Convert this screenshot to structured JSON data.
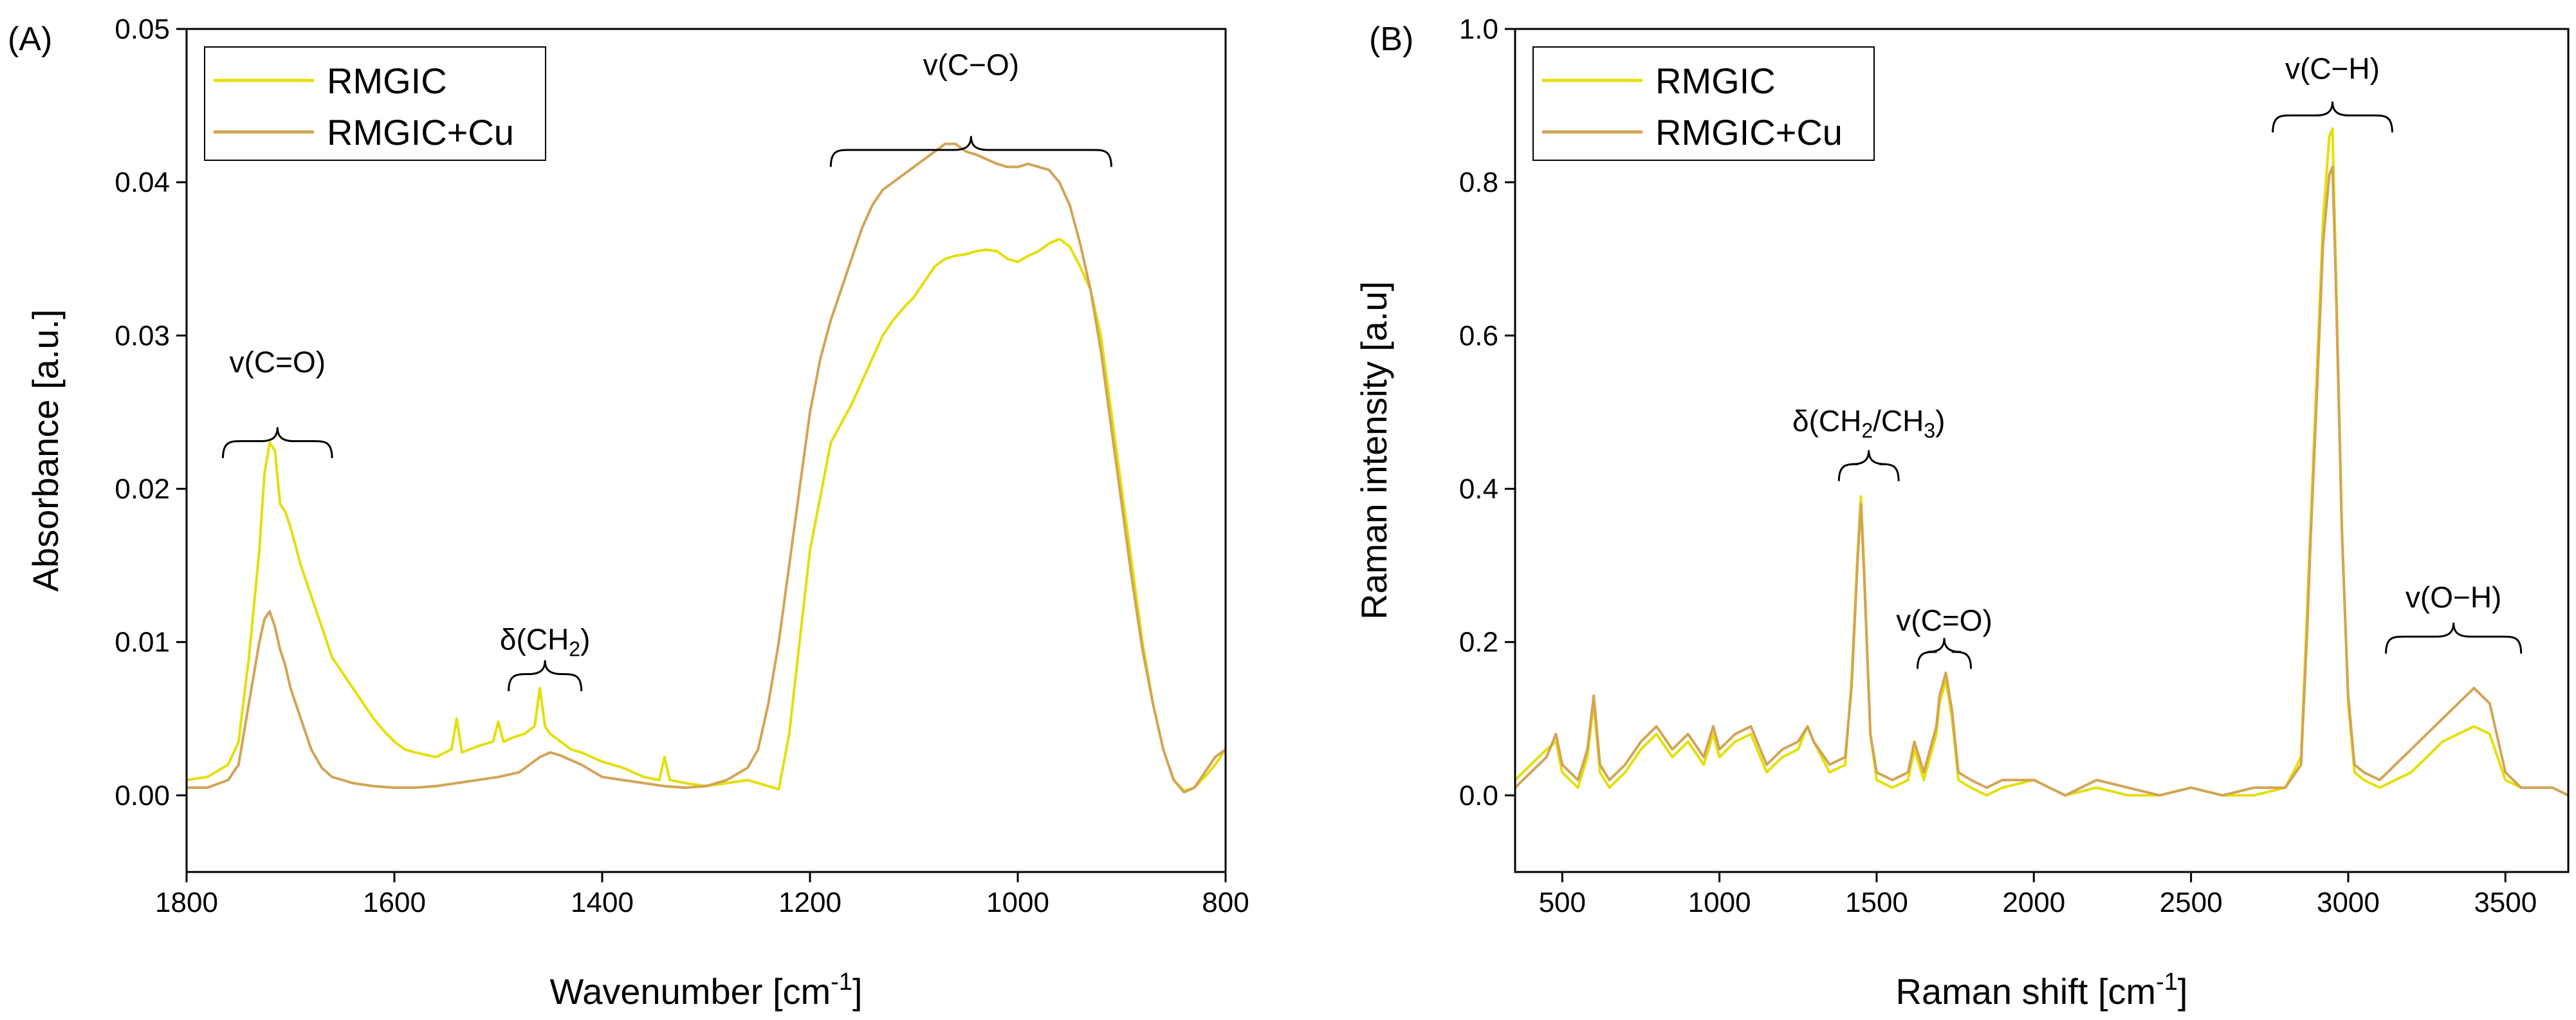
{
  "colors": {
    "rmgic": "#e3e00a",
    "rmgic_cu": "#d2a455",
    "axis": "#000000"
  },
  "chart_data": [
    {
      "type": "line",
      "panel_label": "(A)",
      "xlabel": "Wavenumber [cm",
      "xlabel_sup": "-1",
      "xlabel_end": "]",
      "ylabel": "Absorbance [a.u.]",
      "xlim": [
        1800,
        800
      ],
      "ylim": [
        -0.005,
        0.05
      ],
      "x_reversed": true,
      "xticks": [
        1800,
        1600,
        1400,
        1200,
        1000,
        800
      ],
      "xtick_labels": [
        "1800",
        "1600",
        "1400",
        "1200",
        "1000",
        "800"
      ],
      "yticks": [
        0.0,
        0.01,
        0.02,
        0.03,
        0.04,
        0.05
      ],
      "ytick_labels": [
        "0.00",
        "0.01",
        "0.02",
        "0.03",
        "0.04",
        "0.05"
      ],
      "legend_position": "top-left",
      "series": [
        {
          "name": "RMGIC",
          "color_key": "rmgic",
          "x": [
            1800,
            1780,
            1760,
            1750,
            1740,
            1730,
            1725,
            1720,
            1715,
            1710,
            1705,
            1700,
            1690,
            1680,
            1670,
            1660,
            1650,
            1640,
            1630,
            1620,
            1610,
            1600,
            1590,
            1580,
            1560,
            1545,
            1540,
            1535,
            1520,
            1505,
            1500,
            1495,
            1485,
            1475,
            1465,
            1460,
            1455,
            1450,
            1440,
            1430,
            1420,
            1410,
            1400,
            1390,
            1380,
            1370,
            1360,
            1345,
            1340,
            1335,
            1320,
            1300,
            1280,
            1260,
            1240,
            1230,
            1220,
            1210,
            1200,
            1180,
            1160,
            1150,
            1140,
            1130,
            1120,
            1110,
            1100,
            1090,
            1080,
            1070,
            1060,
            1050,
            1040,
            1030,
            1020,
            1010,
            1000,
            990,
            980,
            970,
            960,
            950,
            940,
            930,
            920,
            910,
            900,
            890,
            880,
            870,
            860,
            850,
            840,
            830,
            820,
            810,
            800
          ],
          "y": [
            0.001,
            0.0012,
            0.002,
            0.0035,
            0.009,
            0.016,
            0.021,
            0.023,
            0.0225,
            0.019,
            0.0185,
            0.0175,
            0.015,
            0.013,
            0.011,
            0.009,
            0.008,
            0.007,
            0.006,
            0.005,
            0.0042,
            0.0035,
            0.003,
            0.0028,
            0.0025,
            0.003,
            0.005,
            0.0028,
            0.0032,
            0.0035,
            0.0048,
            0.0035,
            0.0038,
            0.004,
            0.0045,
            0.007,
            0.0045,
            0.004,
            0.0035,
            0.003,
            0.0028,
            0.0025,
            0.0022,
            0.002,
            0.0018,
            0.0015,
            0.0012,
            0.001,
            0.0025,
            0.001,
            0.0008,
            0.0006,
            0.0008,
            0.001,
            0.0006,
            0.0004,
            0.004,
            0.01,
            0.016,
            0.023,
            0.0255,
            0.027,
            0.0285,
            0.03,
            0.031,
            0.0318,
            0.0325,
            0.0335,
            0.0345,
            0.035,
            0.0352,
            0.0353,
            0.0355,
            0.0356,
            0.0355,
            0.035,
            0.0348,
            0.0352,
            0.0355,
            0.036,
            0.0363,
            0.0358,
            0.0345,
            0.033,
            0.03,
            0.025,
            0.02,
            0.015,
            0.01,
            0.006,
            0.003,
            0.001,
            0.0003,
            0.0005,
            0.0012,
            0.002,
            0.003
          ]
        },
        {
          "name": "RMGIC+Cu",
          "color_key": "rmgic_cu",
          "x": [
            1800,
            1780,
            1760,
            1750,
            1740,
            1730,
            1725,
            1720,
            1715,
            1710,
            1705,
            1700,
            1690,
            1680,
            1670,
            1660,
            1650,
            1640,
            1620,
            1600,
            1580,
            1560,
            1540,
            1520,
            1500,
            1480,
            1470,
            1460,
            1450,
            1440,
            1420,
            1400,
            1380,
            1360,
            1340,
            1320,
            1300,
            1280,
            1260,
            1250,
            1240,
            1230,
            1220,
            1210,
            1200,
            1190,
            1180,
            1170,
            1160,
            1150,
            1140,
            1130,
            1120,
            1110,
            1100,
            1090,
            1080,
            1070,
            1060,
            1050,
            1040,
            1030,
            1020,
            1010,
            1000,
            990,
            980,
            970,
            960,
            950,
            940,
            930,
            920,
            910,
            900,
            890,
            880,
            870,
            860,
            850,
            840,
            830,
            820,
            810,
            800
          ],
          "y": [
            0.0005,
            0.0005,
            0.001,
            0.002,
            0.006,
            0.01,
            0.0115,
            0.012,
            0.011,
            0.0095,
            0.0085,
            0.007,
            0.005,
            0.003,
            0.0018,
            0.0012,
            0.001,
            0.0008,
            0.0006,
            0.0005,
            0.0005,
            0.0006,
            0.0008,
            0.001,
            0.0012,
            0.0015,
            0.002,
            0.0025,
            0.0028,
            0.0026,
            0.002,
            0.0012,
            0.001,
            0.0008,
            0.0006,
            0.0005,
            0.0006,
            0.001,
            0.0018,
            0.003,
            0.006,
            0.01,
            0.015,
            0.02,
            0.025,
            0.0285,
            0.031,
            0.033,
            0.035,
            0.037,
            0.0385,
            0.0395,
            0.04,
            0.0405,
            0.041,
            0.0415,
            0.042,
            0.0425,
            0.0425,
            0.042,
            0.0418,
            0.0415,
            0.0412,
            0.041,
            0.041,
            0.0412,
            0.041,
            0.0408,
            0.04,
            0.0385,
            0.036,
            0.033,
            0.029,
            0.024,
            0.019,
            0.014,
            0.0095,
            0.006,
            0.003,
            0.001,
            0.0002,
            0.0005,
            0.0015,
            0.0025,
            0.003
          ]
        }
      ],
      "annotations": [
        {
          "text": "v(C=O)",
          "x_from": 1765,
          "x_to": 1660,
          "y": 0.022,
          "label_y": 0.0276
        },
        {
          "text": "δ(CH",
          "sub": "2",
          "end": ")",
          "x_from": 1490,
          "x_to": 1420,
          "y": 0.0068,
          "label_y": 0.0095
        },
        {
          "text": "v(C−O)",
          "x_from": 1180,
          "x_to": 910,
          "y": 0.041,
          "label_y": 0.047
        }
      ]
    },
    {
      "type": "line",
      "panel_label": "(B)",
      "xlabel": "Raman shift [cm",
      "xlabel_sup": "-1",
      "xlabel_end": "]",
      "ylabel": "Raman intensity [a.u]",
      "xlim": [
        350,
        3700
      ],
      "ylim": [
        -0.1,
        1.0
      ],
      "xticks": [
        500,
        1000,
        1500,
        2000,
        2500,
        3000,
        3500
      ],
      "xtick_labels": [
        "500",
        "1000",
        "1500",
        "2000",
        "2500",
        "3000",
        "3500"
      ],
      "yticks": [
        0.0,
        0.2,
        0.4,
        0.6,
        0.8,
        1.0
      ],
      "ytick_labels": [
        "0.0",
        "0.2",
        "0.4",
        "0.6",
        "0.8",
        "1.0"
      ],
      "legend_position": "top-left",
      "series": [
        {
          "name": "RMGIC",
          "color_key": "rmgic",
          "x": [
            350,
            400,
            450,
            480,
            500,
            550,
            580,
            600,
            620,
            650,
            700,
            750,
            800,
            850,
            900,
            950,
            980,
            1000,
            1050,
            1100,
            1150,
            1200,
            1250,
            1280,
            1300,
            1350,
            1400,
            1420,
            1440,
            1450,
            1460,
            1480,
            1500,
            1550,
            1600,
            1620,
            1650,
            1690,
            1700,
            1720,
            1740,
            1760,
            1800,
            1850,
            1900,
            2000,
            2100,
            2200,
            2300,
            2400,
            2500,
            2600,
            2700,
            2800,
            2850,
            2870,
            2880,
            2900,
            2920,
            2940,
            2950,
            2960,
            2980,
            3000,
            3020,
            3050,
            3100,
            3150,
            3200,
            3250,
            3300,
            3350,
            3400,
            3450,
            3500,
            3550,
            3600,
            3650,
            3700
          ],
          "y": [
            0.02,
            0.04,
            0.06,
            0.07,
            0.03,
            0.01,
            0.05,
            0.12,
            0.03,
            0.01,
            0.03,
            0.06,
            0.08,
            0.05,
            0.07,
            0.04,
            0.08,
            0.05,
            0.07,
            0.08,
            0.03,
            0.05,
            0.06,
            0.09,
            0.07,
            0.03,
            0.04,
            0.15,
            0.32,
            0.39,
            0.3,
            0.08,
            0.02,
            0.01,
            0.02,
            0.06,
            0.02,
            0.08,
            0.12,
            0.15,
            0.1,
            0.02,
            0.01,
            0.0,
            0.01,
            0.02,
            0.0,
            0.01,
            0.0,
            0.0,
            0.01,
            0.0,
            0.0,
            0.01,
            0.05,
            0.25,
            0.35,
            0.55,
            0.75,
            0.86,
            0.87,
            0.7,
            0.35,
            0.12,
            0.03,
            0.02,
            0.01,
            0.02,
            0.03,
            0.05,
            0.07,
            0.08,
            0.09,
            0.08,
            0.02,
            0.01,
            0.01,
            0.01,
            0.0
          ]
        },
        {
          "name": "RMGIC+Cu",
          "color_key": "rmgic_cu",
          "x": [
            350,
            400,
            450,
            480,
            500,
            550,
            580,
            600,
            620,
            650,
            700,
            750,
            800,
            850,
            900,
            950,
            980,
            1000,
            1050,
            1100,
            1150,
            1200,
            1250,
            1280,
            1300,
            1350,
            1400,
            1420,
            1440,
            1450,
            1460,
            1480,
            1500,
            1550,
            1600,
            1620,
            1650,
            1690,
            1700,
            1720,
            1740,
            1760,
            1800,
            1850,
            1900,
            2000,
            2100,
            2200,
            2300,
            2400,
            2500,
            2600,
            2700,
            2800,
            2850,
            2870,
            2880,
            2900,
            2920,
            2940,
            2950,
            2960,
            2980,
            3000,
            3020,
            3050,
            3100,
            3150,
            3200,
            3250,
            3300,
            3350,
            3400,
            3450,
            3500,
            3550,
            3600,
            3650,
            3700
          ],
          "y": [
            0.01,
            0.03,
            0.05,
            0.08,
            0.04,
            0.02,
            0.06,
            0.13,
            0.04,
            0.02,
            0.04,
            0.07,
            0.09,
            0.06,
            0.08,
            0.05,
            0.09,
            0.06,
            0.08,
            0.09,
            0.04,
            0.06,
            0.07,
            0.09,
            0.07,
            0.04,
            0.05,
            0.14,
            0.31,
            0.38,
            0.29,
            0.08,
            0.03,
            0.02,
            0.03,
            0.07,
            0.03,
            0.09,
            0.13,
            0.16,
            0.11,
            0.03,
            0.02,
            0.01,
            0.02,
            0.02,
            0.0,
            0.02,
            0.01,
            0.0,
            0.01,
            0.0,
            0.01,
            0.01,
            0.04,
            0.22,
            0.33,
            0.52,
            0.72,
            0.81,
            0.82,
            0.68,
            0.34,
            0.13,
            0.04,
            0.03,
            0.02,
            0.04,
            0.06,
            0.08,
            0.1,
            0.12,
            0.14,
            0.12,
            0.03,
            0.01,
            0.01,
            0.01,
            0.0
          ]
        }
      ],
      "annotations": [
        {
          "text": "δ(CH",
          "sub": "2",
          "mid": "/CH",
          "sub2": "3",
          "end": ")",
          "x_from": 1380,
          "x_to": 1570,
          "y": 0.41,
          "label_y": 0.475
        },
        {
          "text": "v(C=O)",
          "x_from": 1630,
          "x_to": 1800,
          "y": 0.165,
          "label_y": 0.215
        },
        {
          "text": "v(C−H)",
          "x_from": 2760,
          "x_to": 3140,
          "y": 0.865,
          "label_y": 0.935
        },
        {
          "text": "v(O−H)",
          "x_from": 3120,
          "x_to": 3550,
          "y": 0.185,
          "label_y": 0.245
        }
      ]
    }
  ]
}
